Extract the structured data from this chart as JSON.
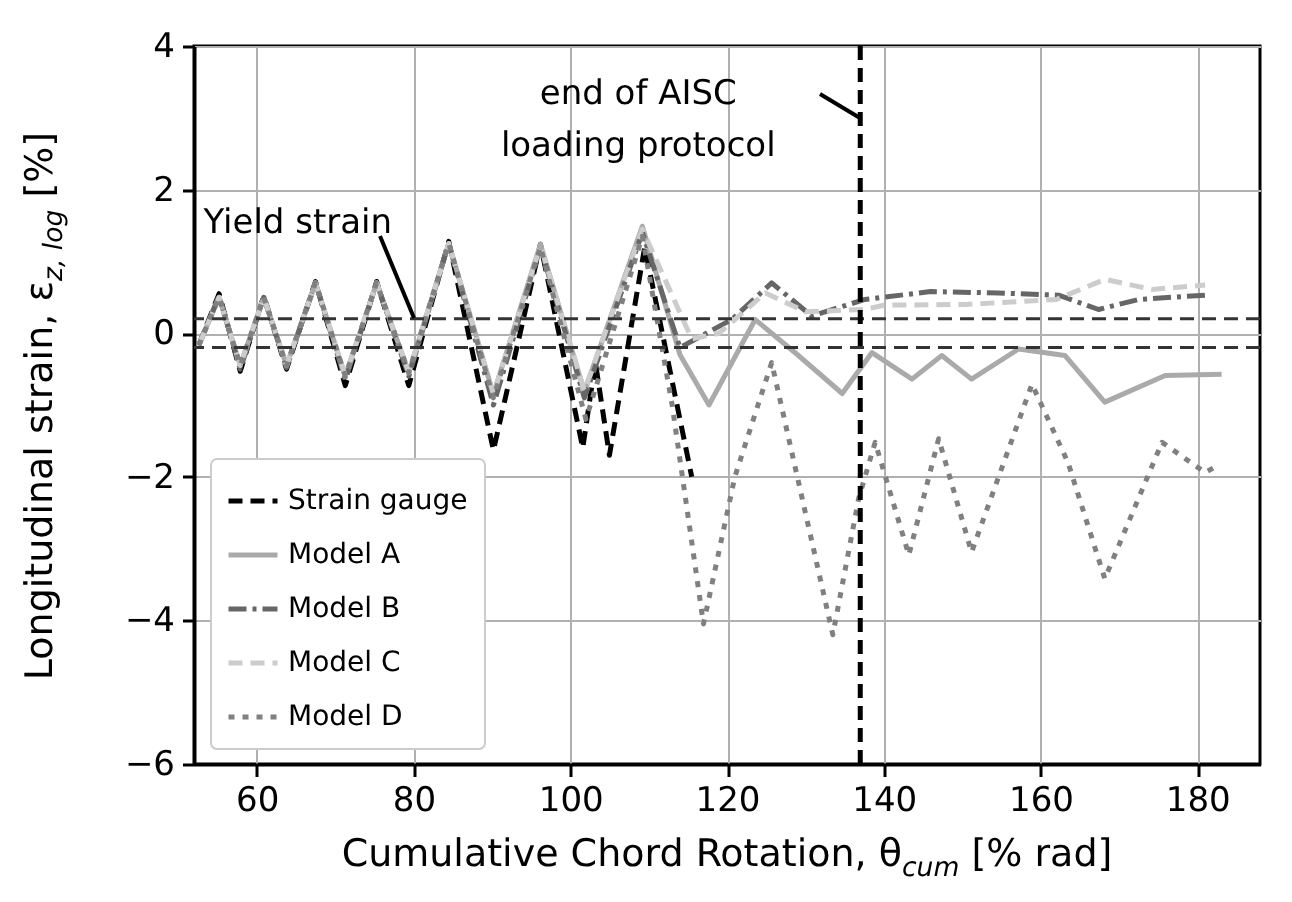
{
  "chart_data": {
    "type": "line",
    "xlabel": "Cumulative Chord Rotation, θ$_{cum}$ [% rad]",
    "ylabel": "Longitudinal strain, ε$_{z, log}$ [%]",
    "xlim": [
      52,
      188
    ],
    "ylim": [
      -6,
      4
    ],
    "xticks": [
      60,
      80,
      100,
      120,
      140,
      160,
      180
    ],
    "yticks": [
      {
        "value": -6,
        "label": "−6"
      },
      {
        "value": -4,
        "label": "−4"
      },
      {
        "value": -2,
        "label": "−2"
      },
      0,
      2,
      4
    ],
    "grid": true,
    "legend": "bottom left",
    "marker": "none",
    "series": [
      {
        "name": "Strain gauge",
        "color": "#000000",
        "line_style": "dashed",
        "x": [
          52.6,
          55.2,
          57.9,
          60.9,
          63.8,
          67.5,
          71.3,
          75.3,
          79.4,
          84.5,
          90.2,
          96.2,
          101.6,
          103.2,
          105,
          109.5,
          115.5
        ],
        "values": [
          -0.17,
          0.55,
          -0.53,
          0.52,
          -0.5,
          0.72,
          -0.73,
          0.72,
          -0.73,
          1.28,
          -1.63,
          1.24,
          -1.6,
          -0.4,
          -1.7,
          1.2,
          -2.0
        ]
      },
      {
        "name": "Model A",
        "color": "#aaaaaa",
        "line_style": "solid",
        "x": [
          52.6,
          55.2,
          57.9,
          60.9,
          63.8,
          67.5,
          71.3,
          75.3,
          79.4,
          84.5,
          90.2,
          96.2,
          101.8,
          109.2,
          114,
          117.7,
          123.6,
          129,
          134.7,
          138.5,
          143.6,
          147.4,
          151.2,
          157.2,
          163.1,
          168.2,
          175.9,
          183.1
        ],
        "values": [
          -0.17,
          0.5,
          -0.45,
          0.5,
          -0.45,
          0.7,
          -0.6,
          0.7,
          -0.55,
          1.25,
          -0.85,
          1.24,
          -0.82,
          1.49,
          -0.3,
          -1.0,
          0.19,
          -0.3,
          -0.84,
          -0.27,
          -0.64,
          -0.31,
          -0.64,
          -0.22,
          -0.31,
          -0.96,
          -0.59,
          -0.57
        ]
      },
      {
        "name": "Model B",
        "color": "#666666",
        "line_style": "dashdot",
        "x": [
          52.6,
          55.2,
          57.9,
          60.9,
          63.8,
          67.5,
          71.3,
          75.3,
          79.4,
          84.5,
          90.2,
          96.2,
          101.8,
          109.2,
          114,
          120.6,
          125.7,
          130.8,
          137.6,
          146,
          154.6,
          162.3,
          167.4,
          172.5,
          181
        ],
        "values": [
          -0.17,
          0.52,
          -0.5,
          0.5,
          -0.48,
          0.7,
          -0.65,
          0.7,
          -0.6,
          1.25,
          -1.0,
          1.2,
          -0.9,
          1.4,
          -0.2,
          0.19,
          0.7,
          0.24,
          0.47,
          0.58,
          0.56,
          0.53,
          0.33,
          0.47,
          0.53
        ]
      },
      {
        "name": "Model C",
        "color": "#cccccc",
        "line_style": "dashed",
        "x": [
          52.6,
          55.2,
          57.9,
          60.9,
          63.8,
          67.5,
          71.3,
          75.3,
          79.4,
          84.5,
          90.2,
          96.2,
          101.8,
          109.2,
          115.5,
          119,
          124.9,
          130,
          137.6,
          140,
          150.4,
          162,
          168.2,
          174.2,
          181
        ],
        "values": [
          -0.17,
          0.5,
          -0.45,
          0.5,
          -0.45,
          0.7,
          -0.6,
          0.7,
          -0.55,
          1.25,
          -0.85,
          1.22,
          -0.8,
          1.45,
          -0.08,
          0.0,
          0.56,
          0.3,
          0.33,
          0.39,
          0.4,
          0.47,
          0.75,
          0.61,
          0.67
        ]
      },
      {
        "name": "Model D",
        "color": "#808080",
        "line_style": "dotted",
        "x": [
          52.6,
          55.2,
          57.9,
          60.9,
          63.8,
          67.5,
          71.3,
          75.3,
          79.4,
          84.5,
          90.2,
          96.2,
          102,
          109.2,
          113,
          117,
          121,
          125.7,
          130,
          133.5,
          136.8,
          138.9,
          143.2,
          147,
          151.2,
          158.9,
          163.5,
          168.2,
          175.5,
          181,
          182.5
        ],
        "values": [
          -0.17,
          0.5,
          -0.45,
          0.5,
          -0.45,
          0.7,
          -0.6,
          0.7,
          -0.55,
          1.25,
          -0.9,
          1.2,
          -1.2,
          1.35,
          -1.0,
          -4.05,
          -2.0,
          -0.41,
          -2.5,
          -4.2,
          -2.3,
          -1.52,
          -3.09,
          -1.47,
          -3.05,
          -0.71,
          -1.8,
          -3.42,
          -1.52,
          -1.94,
          -1.85
        ]
      }
    ],
    "ref_lines": [
      {
        "axis": "y",
        "value": 0.2,
        "color": "#333333",
        "line_style": "dashed"
      },
      {
        "axis": "y",
        "value": -0.2,
        "color": "#333333",
        "line_style": "dashed"
      },
      {
        "axis": "x",
        "value": 137,
        "color": "#000000",
        "line_style": "dashed"
      }
    ],
    "annotations": [
      {
        "text": "Yield strain",
        "x": 80,
        "y": 0.2
      },
      {
        "text": "end of AISC\nloading protocol",
        "x": 137,
        "y": 3.0
      }
    ]
  }
}
